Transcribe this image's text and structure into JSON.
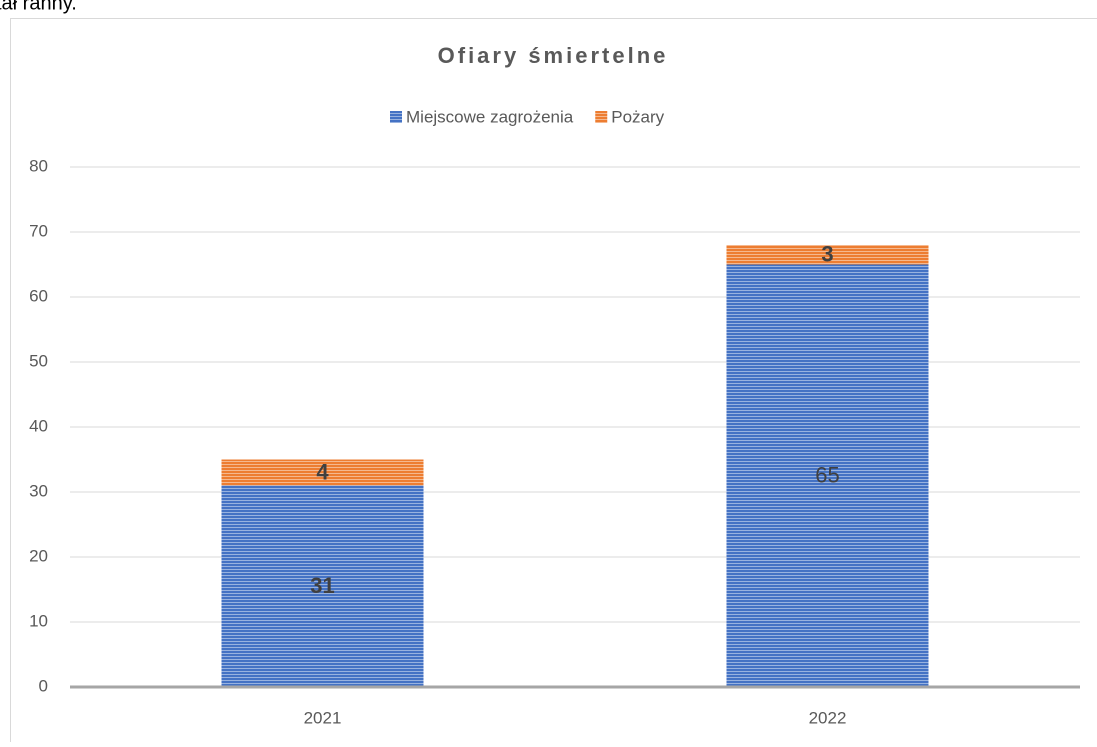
{
  "header_text": "tał ranny.",
  "chart_data": {
    "type": "stacked_bar",
    "title": "Ofiary śmiertelne",
    "categories": [
      "2021",
      "2022"
    ],
    "series": [
      {
        "name": "Miejscowe zagrożenia",
        "color": "#4472c4",
        "values": [
          31,
          65
        ],
        "label_bold": [
          true,
          false
        ]
      },
      {
        "name": "Pożary",
        "color": "#ed7d31",
        "values": [
          4,
          3
        ],
        "label_bold": [
          true,
          true
        ]
      }
    ],
    "ylim": [
      0,
      80
    ],
    "yticks": [
      0,
      10,
      20,
      30,
      40,
      50,
      60,
      70,
      80
    ],
    "grid": true,
    "legend": "top"
  }
}
